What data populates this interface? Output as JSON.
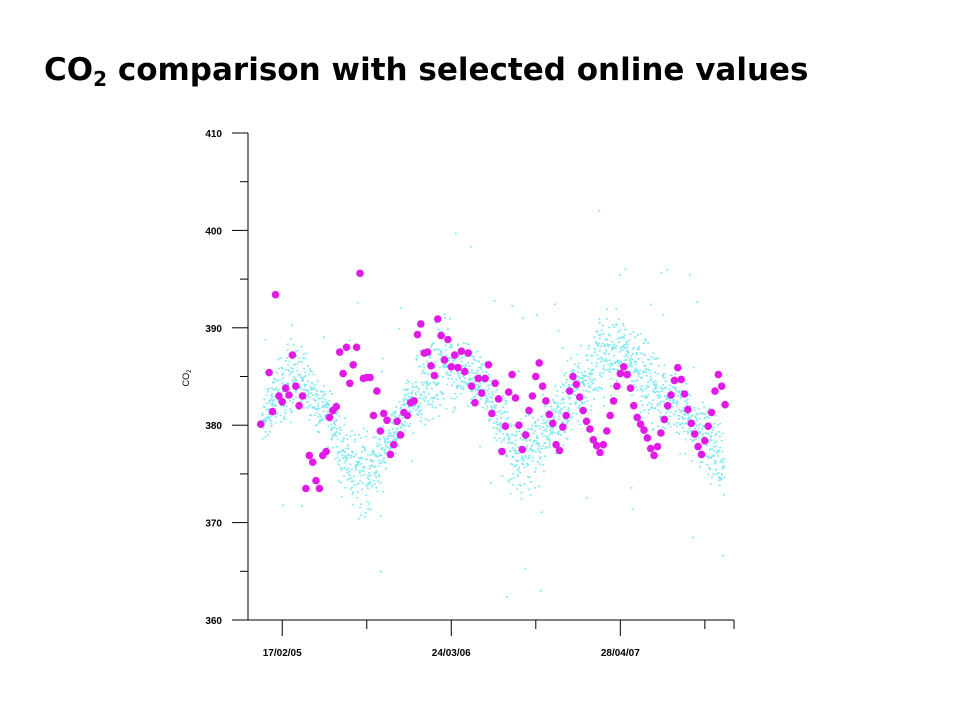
{
  "title": {
    "main": "CO",
    "subscript": "2",
    "rest": " comparison with selected online values"
  },
  "colors": {
    "online_points": "#7FE8F0",
    "selected_points": "#E21AE8",
    "axis": "#000000"
  },
  "chart_data": {
    "type": "scatter",
    "ylabel": "CO2",
    "ylabel_main": "CO",
    "ylabel_sub": "2",
    "ylim": [
      360,
      410
    ],
    "yticks": [
      360,
      370,
      380,
      390,
      400,
      410
    ],
    "yticks_labels": [
      "360",
      "370",
      "380",
      "390",
      "400",
      "410"
    ],
    "xlim": [
      "2004-11-28",
      "2008-01-22"
    ],
    "xticks_labels": [
      "17/02/05",
      "24/03/06",
      "28/04/07"
    ],
    "xticks_dates": [
      "2005-02-17",
      "2006-03-24",
      "2007-04-28"
    ],
    "grid": false,
    "online_band": {
      "description_hidden": true,
      "x": [
        "2004-12-31",
        "2005-02-05",
        "2005-03-05",
        "2005-04-10",
        "2005-05-10",
        "2005-06-10",
        "2005-07-10",
        "2005-08-10",
        "2005-09-10",
        "2005-10-10",
        "2005-11-10",
        "2005-12-10",
        "2006-01-10",
        "2006-02-10",
        "2006-03-10",
        "2006-04-10",
        "2006-05-10",
        "2006-06-10",
        "2006-07-10",
        "2006-08-10",
        "2006-09-10",
        "2006-10-10",
        "2006-11-10",
        "2006-12-10",
        "2007-01-10",
        "2007-02-10",
        "2007-03-10",
        "2007-04-10",
        "2007-05-10",
        "2007-06-10",
        "2007-07-10",
        "2007-08-10",
        "2007-09-10",
        "2007-10-10",
        "2007-11-10",
        "2007-12-10",
        "2007-12-31"
      ],
      "center": [
        380.5,
        383,
        385,
        384.5,
        382.5,
        381,
        377.5,
        374.5,
        375,
        377,
        379.5,
        382,
        383.5,
        385.5,
        387,
        386,
        385,
        384.5,
        381,
        377.5,
        375.5,
        378,
        379.5,
        381,
        383,
        385,
        386.5,
        387.5,
        387,
        385.5,
        384,
        383,
        382,
        380.5,
        378.5,
        376.5,
        376
      ],
      "spread": [
        2,
        3,
        4,
        3,
        2.5,
        2.5,
        3,
        4,
        3,
        2.5,
        2,
        2.5,
        3,
        4,
        4,
        3,
        2.5,
        2.5,
        3,
        4,
        4,
        3,
        2.5,
        2.5,
        3,
        3,
        3.5,
        3,
        3,
        3,
        3,
        3,
        3,
        3,
        3,
        3,
        3
      ]
    },
    "series": [
      {
        "name": "",
        "role": "selected",
        "x": [
          "2004-12-28",
          "2005-01-17",
          "2005-01-25",
          "2005-02-01",
          "2005-02-09",
          "2005-02-17",
          "2005-02-25",
          "2005-03-05",
          "2005-03-13",
          "2005-03-21",
          "2005-03-29",
          "2005-04-06",
          "2005-04-14",
          "2005-04-22",
          "2005-04-30",
          "2005-05-08",
          "2005-05-16",
          "2005-05-24",
          "2005-06-01",
          "2005-06-09",
          "2005-06-17",
          "2005-06-25",
          "2005-07-03",
          "2005-07-11",
          "2005-07-19",
          "2005-07-27",
          "2005-08-04",
          "2005-08-12",
          "2005-08-20",
          "2005-08-28",
          "2005-09-05",
          "2005-09-13",
          "2005-09-21",
          "2005-09-29",
          "2005-10-07",
          "2005-10-15",
          "2005-10-23",
          "2005-10-31",
          "2005-11-08",
          "2005-11-16",
          "2005-11-24",
          "2005-12-02",
          "2005-12-10",
          "2005-12-18",
          "2005-12-26",
          "2006-01-03",
          "2006-01-11",
          "2006-01-19",
          "2006-01-27",
          "2006-02-04",
          "2006-02-12",
          "2006-02-20",
          "2006-02-28",
          "2006-03-08",
          "2006-03-16",
          "2006-03-24",
          "2006-04-01",
          "2006-04-09",
          "2006-04-17",
          "2006-04-25",
          "2006-05-03",
          "2006-05-11",
          "2006-05-19",
          "2006-05-27",
          "2006-06-04",
          "2006-06-12",
          "2006-06-20",
          "2006-06-28",
          "2006-07-06",
          "2006-07-14",
          "2006-07-22",
          "2006-07-30",
          "2006-08-07",
          "2006-08-15",
          "2006-08-23",
          "2006-08-31",
          "2006-09-08",
          "2006-09-16",
          "2006-09-24",
          "2006-10-02",
          "2006-10-10",
          "2006-10-18",
          "2006-10-26",
          "2006-11-03",
          "2006-11-11",
          "2006-11-19",
          "2006-11-27",
          "2006-12-05",
          "2006-12-13",
          "2006-12-21",
          "2006-12-29",
          "2007-01-06",
          "2007-01-14",
          "2007-01-22",
          "2007-01-30",
          "2007-02-07",
          "2007-02-15",
          "2007-02-23",
          "2007-03-03",
          "2007-03-11",
          "2007-03-19",
          "2007-03-27",
          "2007-04-04",
          "2007-04-12",
          "2007-04-20",
          "2007-04-28",
          "2007-05-06",
          "2007-05-14",
          "2007-05-22",
          "2007-05-30",
          "2007-06-07",
          "2007-06-15",
          "2007-06-23",
          "2007-07-01",
          "2007-07-09",
          "2007-07-17",
          "2007-07-25",
          "2007-08-02",
          "2007-08-10",
          "2007-08-18",
          "2007-08-26",
          "2007-09-03",
          "2007-09-11",
          "2007-09-19",
          "2007-09-27",
          "2007-10-05",
          "2007-10-13",
          "2007-10-21",
          "2007-10-29",
          "2007-11-06",
          "2007-11-14",
          "2007-11-22",
          "2007-11-30",
          "2007-12-08",
          "2007-12-16",
          "2007-12-24",
          "2008-01-01"
        ],
        "y": [
          380.1,
          385.4,
          381.4,
          393.4,
          383.0,
          382.4,
          383.8,
          383.1,
          387.2,
          384.0,
          382.0,
          383.0,
          373.5,
          376.9,
          376.2,
          374.3,
          373.5,
          376.9,
          377.3,
          380.8,
          381.5,
          381.9,
          387.5,
          385.3,
          388.0,
          384.3,
          386.2,
          388.0,
          395.6,
          384.8,
          384.9,
          384.9,
          381.0,
          383.5,
          379.4,
          381.2,
          380.5,
          377.0,
          378.0,
          380.4,
          379.0,
          381.3,
          381.0,
          382.3,
          382.5,
          389.3,
          390.4,
          387.4,
          387.5,
          386.1,
          385.1,
          390.9,
          389.2,
          386.7,
          388.8,
          386.0,
          387.2,
          385.9,
          387.6,
          385.5,
          387.4,
          384.0,
          382.3,
          384.8,
          383.3,
          384.8,
          386.2,
          381.2,
          384.3,
          382.7,
          377.3,
          379.9,
          383.4,
          385.2,
          382.8,
          380.0,
          377.5,
          379.0,
          381.5,
          383.0,
          385.0,
          386.4,
          384.0,
          382.5,
          381.1,
          380.2,
          378.0,
          377.4,
          379.8,
          381.0,
          383.5,
          385.0,
          384.2,
          382.9,
          381.5,
          380.4,
          379.6,
          378.5,
          377.9,
          377.2,
          378.0,
          379.4,
          381.0,
          382.5,
          384.0,
          385.3,
          386.0,
          385.2,
          383.8,
          382.0,
          380.8,
          380.1,
          379.5,
          378.7,
          377.6,
          376.9,
          377.8,
          379.2,
          380.6,
          382.0,
          383.1,
          384.6,
          385.9,
          384.7,
          383.2,
          381.6,
          380.2,
          379.1,
          377.8,
          377.0,
          378.4,
          379.9,
          381.3,
          383.5,
          385.2,
          384.0,
          382.1
        ]
      }
    ]
  }
}
